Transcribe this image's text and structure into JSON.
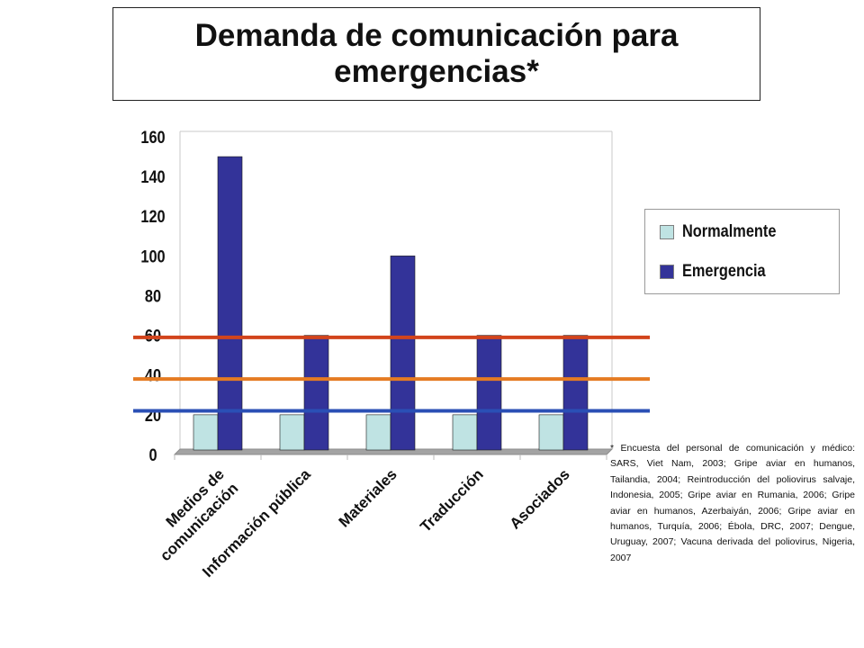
{
  "title": "Demanda de comunicación para emergencias*",
  "chart_data": {
    "type": "bar",
    "title": "Demanda de comunicación para emergencias*",
    "categories": [
      [
        "Medios de",
        "comunicación"
      ],
      [
        "Información pública"
      ],
      [
        "Materiales"
      ],
      [
        "Traducción"
      ],
      [
        "Asociados"
      ]
    ],
    "series": [
      {
        "name": "Normalmente",
        "color": "#bfe3e3",
        "values": [
          20,
          20,
          20,
          20,
          20
        ]
      },
      {
        "name": "Emergencia",
        "color": "#333399",
        "values": [
          150,
          60,
          100,
          60,
          60
        ]
      }
    ],
    "yticks": [
      "0",
      "20",
      "40",
      "60",
      "80",
      "100",
      "120",
      "140",
      "160"
    ],
    "ylim": [
      0,
      160
    ],
    "reference_lines": [
      {
        "value": 22,
        "color": "#2a4fb5"
      },
      {
        "value": 38,
        "color": "#e57b22"
      },
      {
        "value": 59,
        "color": "#d2441c"
      }
    ],
    "legend_position": "right",
    "grid": false
  },
  "footnote": "* Encuesta del personal de comunicación y médico: SARS, Viet Nam, 2003; Gripe aviar en humanos, Tailandia, 2004; Reintroducción del poliovirus salvaje, Indonesia, 2005; Gripe aviar en Rumania, 2006; Gripe aviar en humanos, Azerbaiyán, 2006; Gripe aviar en humanos, Turquía, 2006; Ébola, DRC, 2007; Dengue, Uruguay, 2007; Vacuna derivada del poliovirus, Nigeria, 2007"
}
